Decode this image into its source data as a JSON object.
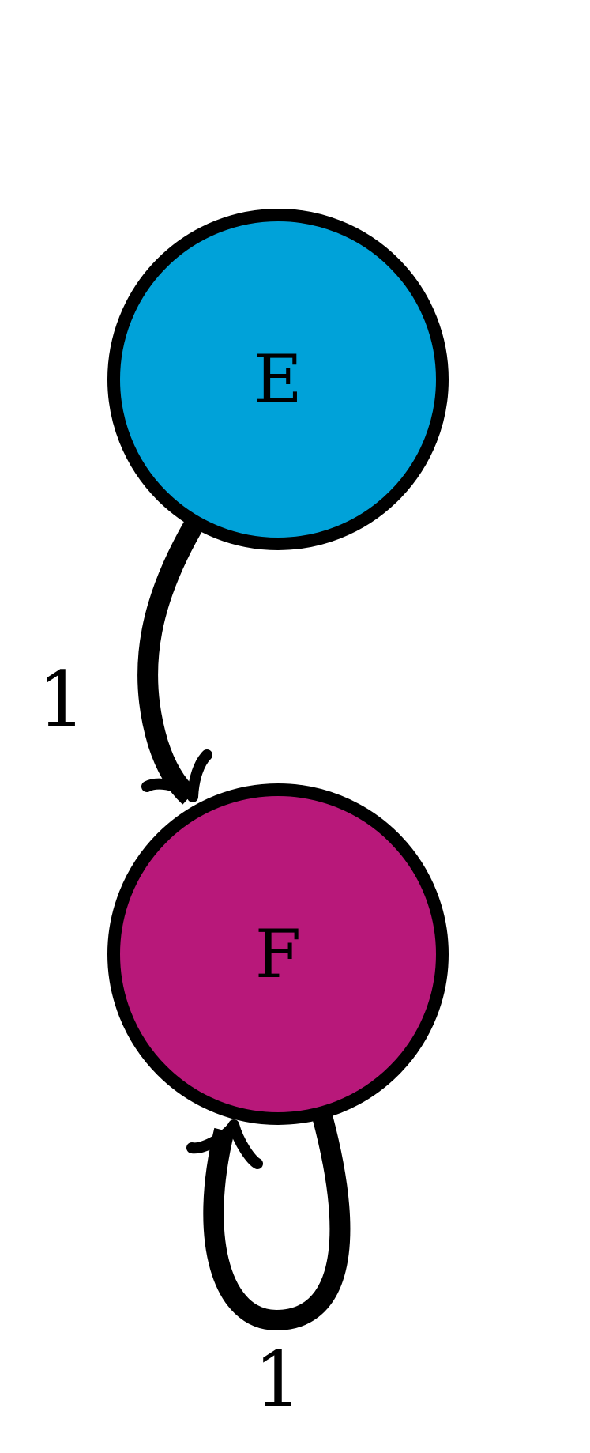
{
  "diagram": {
    "nodes": [
      {
        "id": "E",
        "label": "E",
        "fill": "#00a2d9"
      },
      {
        "id": "F",
        "label": "F",
        "fill": "#b8187a"
      }
    ],
    "edges": [
      {
        "from": "E",
        "to": "F",
        "label": "1"
      },
      {
        "from": "F",
        "to": "F",
        "label": "1"
      }
    ],
    "stroke_color": "#000000"
  }
}
